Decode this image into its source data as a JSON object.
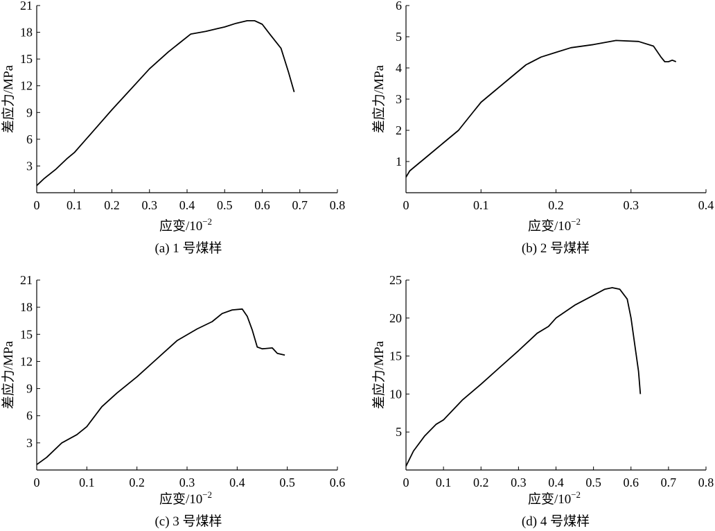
{
  "chart_data": [
    {
      "type": "line",
      "caption": "(a)  1 号煤样",
      "xlabel": "应变/10",
      "xlabel_sup": "−2",
      "ylabel": "差应力/MPa",
      "xlim": [
        0,
        0.8
      ],
      "ylim": [
        0,
        21
      ],
      "xticks": [
        "0",
        "0.1",
        "0.2",
        "0.3",
        "0.4",
        "0.5",
        "0.6",
        "0.7",
        "0.8"
      ],
      "yticks": [
        "3",
        "6",
        "9",
        "12",
        "15",
        "18",
        "21"
      ],
      "grid": false,
      "series": [
        {
          "x": [
            0,
            0.02,
            0.05,
            0.08,
            0.1,
            0.15,
            0.2,
            0.25,
            0.3,
            0.35,
            0.38,
            0.41,
            0.45,
            0.48,
            0.5,
            0.53,
            0.56,
            0.58,
            0.6,
            0.62,
            0.65,
            0.67,
            0.685
          ],
          "y": [
            0.8,
            1.6,
            2.6,
            3.8,
            4.5,
            6.9,
            9.3,
            11.6,
            13.9,
            15.8,
            16.8,
            17.8,
            18.1,
            18.4,
            18.6,
            19.0,
            19.3,
            19.3,
            18.9,
            17.8,
            16.2,
            13.5,
            11.3
          ]
        }
      ]
    },
    {
      "type": "line",
      "caption": "(b)  2 号煤样",
      "xlabel": "应变/10",
      "xlabel_sup": "−2",
      "ylabel": "差应力/MPa",
      "xlim": [
        0,
        0.4
      ],
      "ylim": [
        0,
        6
      ],
      "xticks": [
        "0",
        "0.1",
        "0.2",
        "0.3",
        "0.4"
      ],
      "yticks": [
        "1",
        "2",
        "3",
        "4",
        "5",
        "6"
      ],
      "grid": false,
      "series": [
        {
          "x": [
            0,
            0.005,
            0.015,
            0.025,
            0.03,
            0.05,
            0.07,
            0.09,
            0.1,
            0.12,
            0.14,
            0.16,
            0.18,
            0.2,
            0.22,
            0.25,
            0.28,
            0.31,
            0.33,
            0.34,
            0.345,
            0.35,
            0.355,
            0.36
          ],
          "y": [
            0.5,
            0.7,
            0.9,
            1.1,
            1.2,
            1.6,
            2.0,
            2.6,
            2.9,
            3.3,
            3.7,
            4.1,
            4.35,
            4.5,
            4.65,
            4.75,
            4.88,
            4.85,
            4.7,
            4.35,
            4.2,
            4.2,
            4.25,
            4.2
          ]
        }
      ]
    },
    {
      "type": "line",
      "caption": "(c)  3 号煤样",
      "xlabel": "应变/10",
      "xlabel_sup": "−2",
      "ylabel": "差应力/MPa",
      "xlim": [
        0,
        0.6
      ],
      "ylim": [
        0,
        21
      ],
      "xticks": [
        "0",
        "0.1",
        "0.2",
        "0.3",
        "0.4",
        "0.5",
        "0.6"
      ],
      "yticks": [
        "3",
        "6",
        "9",
        "12",
        "15",
        "18",
        "21"
      ],
      "grid": false,
      "series": [
        {
          "x": [
            0,
            0.02,
            0.05,
            0.08,
            0.1,
            0.13,
            0.16,
            0.2,
            0.24,
            0.28,
            0.32,
            0.35,
            0.37,
            0.39,
            0.41,
            0.42,
            0.43,
            0.44,
            0.45,
            0.47,
            0.48,
            0.495
          ],
          "y": [
            0.6,
            1.4,
            3.0,
            3.9,
            4.8,
            7.0,
            8.5,
            10.3,
            12.3,
            14.3,
            15.6,
            16.4,
            17.3,
            17.7,
            17.8,
            17.0,
            15.5,
            13.6,
            13.4,
            13.5,
            12.9,
            12.7
          ]
        }
      ]
    },
    {
      "type": "line",
      "caption": "(d)  4 号煤样",
      "xlabel": "应变/10",
      "xlabel_sup": "−2",
      "ylabel": "差应力/MPa",
      "xlim": [
        0,
        0.8
      ],
      "ylim": [
        0,
        25
      ],
      "xticks": [
        "0",
        "0.1",
        "0.2",
        "0.3",
        "0.4",
        "0.5",
        "0.6",
        "0.7",
        "0.8"
      ],
      "yticks": [
        "5",
        "10",
        "15",
        "20",
        "25"
      ],
      "grid": false,
      "series": [
        {
          "x": [
            0,
            0.02,
            0.05,
            0.08,
            0.1,
            0.15,
            0.2,
            0.25,
            0.3,
            0.35,
            0.38,
            0.4,
            0.45,
            0.5,
            0.53,
            0.55,
            0.57,
            0.59,
            0.6,
            0.61,
            0.62,
            0.625
          ],
          "y": [
            0.5,
            2.5,
            4.5,
            6.0,
            6.6,
            9.2,
            11.3,
            13.5,
            15.7,
            18.0,
            18.9,
            20.0,
            21.7,
            23.0,
            23.8,
            24.0,
            23.8,
            22.5,
            20.0,
            16.5,
            13.0,
            10.0
          ]
        }
      ]
    }
  ]
}
